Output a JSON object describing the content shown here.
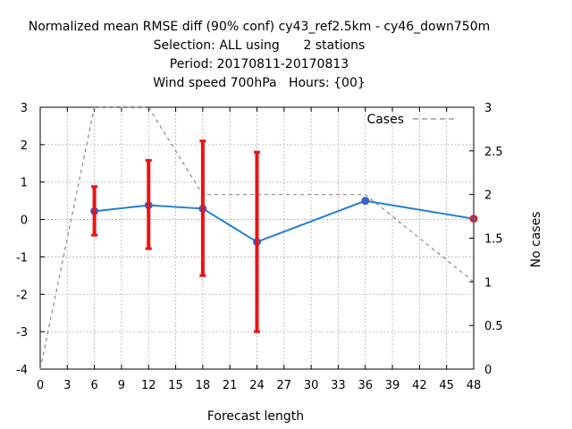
{
  "chart_data": {
    "type": "line",
    "title_lines": [
      "Normalized mean RMSE diff (90% conf) cy43_ref2.5km - cy46_down750m",
      "Selection: ALL using      2 stations",
      "Period: 20170811-20170813",
      "Wind speed 700hPa   Hours: {00}"
    ],
    "xlabel": "Forecast length",
    "ylabel": "",
    "y2label": "No cases",
    "xlim": [
      0,
      48
    ],
    "ylim": [
      -4,
      3
    ],
    "y2lim": [
      0,
      3
    ],
    "x_ticks": [
      0,
      3,
      6,
      9,
      12,
      15,
      18,
      21,
      24,
      27,
      30,
      33,
      36,
      39,
      42,
      45,
      48
    ],
    "y_ticks": [
      -4,
      -3,
      -2,
      -1,
      0,
      1,
      2,
      3
    ],
    "y2_ticks": [
      "0",
      "0.5",
      "1",
      "1.5",
      "2",
      "2.5",
      "3"
    ],
    "grid": true,
    "legend_position": "top-right",
    "series": [
      {
        "name": "",
        "color": "#1f7fdc",
        "marker_color": "#3b5fc8",
        "x": [
          6,
          12,
          18,
          24,
          36,
          48
        ],
        "y": [
          0.22,
          0.38,
          0.29,
          -0.6,
          0.5,
          0.02
        ]
      },
      {
        "name": "Cases",
        "axis": "y2",
        "style": "dashed",
        "color": "#888888",
        "x": [
          0,
          6,
          12,
          18,
          24,
          36,
          48
        ],
        "y": [
          0,
          3,
          3,
          2,
          2,
          2,
          1
        ]
      }
    ],
    "error_bars": {
      "color": "#ee1111",
      "x": [
        6,
        12,
        18,
        24
      ],
      "low": [
        -0.42,
        -0.78,
        -1.5,
        -3.0
      ],
      "high": [
        0.88,
        1.58,
        2.1,
        1.8
      ]
    },
    "end_marker": {
      "x": 48,
      "y": 0.02,
      "color": "#dd2222"
    }
  }
}
